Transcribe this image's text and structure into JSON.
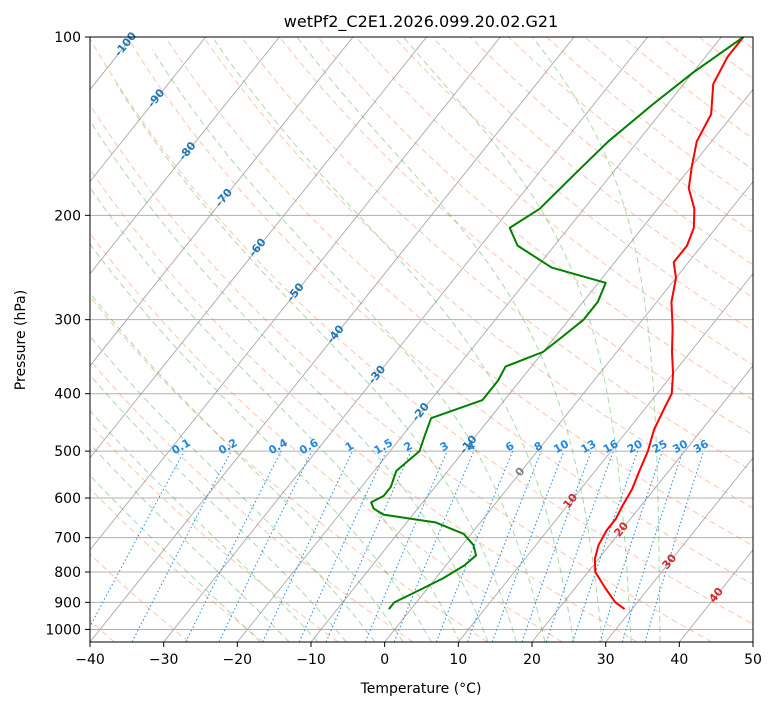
{
  "chart_data": {
    "type": "line",
    "chart_kind": "skew-t log-p diagram",
    "title": "wetPf2_C2E1.2026.099.20.02.G21",
    "xlabel": "Temperature (°C)",
    "ylabel": "Pressure (hPa)",
    "xlim": [
      -40,
      50
    ],
    "ylim": [
      1050,
      100
    ],
    "x_ticks": [
      -40,
      -30,
      -20,
      -10,
      0,
      10,
      20,
      30,
      40,
      50
    ],
    "y_ticks": [
      1000,
      900,
      800,
      700,
      600,
      500,
      400,
      300,
      200,
      100
    ],
    "y_scale": "log",
    "grid": true,
    "colors": {
      "temperature": "#ff0000",
      "dewpoint": "#008000",
      "isotherm": "#a0a0a0",
      "dry_adiabat": "#ff7f50",
      "moist_adiabat": "#2ca02c",
      "mixing_ratio": "#1e88e5",
      "label_blue": "#1f77b4",
      "label_red": "#d62728"
    },
    "series": [
      {
        "name": "Temperature",
        "points": [
          [
            924,
            29
          ],
          [
            900,
            27
          ],
          [
            850,
            24
          ],
          [
            800,
            21
          ],
          [
            760,
            19.5
          ],
          [
            720,
            18.5
          ],
          [
            680,
            18
          ],
          [
            650,
            18
          ],
          [
            620,
            17.5
          ],
          [
            580,
            17
          ],
          [
            540,
            16
          ],
          [
            500,
            15
          ],
          [
            460,
            13.5
          ],
          [
            420,
            12.5
          ],
          [
            400,
            12
          ],
          [
            370,
            10
          ],
          [
            340,
            7.5
          ],
          [
            310,
            5
          ],
          [
            280,
            2
          ],
          [
            255,
            0
          ],
          [
            240,
            -2
          ],
          [
            225,
            -2
          ],
          [
            210,
            -3
          ],
          [
            195,
            -5
          ],
          [
            180,
            -8
          ],
          [
            165,
            -10
          ],
          [
            150,
            -12
          ],
          [
            135,
            -13
          ],
          [
            120,
            -16
          ],
          [
            108,
            -17
          ],
          [
            100,
            -17
          ]
        ]
      },
      {
        "name": "Dewpoint",
        "points": [
          [
            924,
            -3
          ],
          [
            900,
            -3
          ],
          [
            860,
            -1
          ],
          [
            820,
            1
          ],
          [
            780,
            2.5
          ],
          [
            750,
            3
          ],
          [
            720,
            1.5
          ],
          [
            690,
            -1
          ],
          [
            660,
            -6
          ],
          [
            640,
            -14
          ],
          [
            625,
            -16
          ],
          [
            610,
            -17
          ],
          [
            595,
            -16
          ],
          [
            575,
            -16
          ],
          [
            540,
            -17
          ],
          [
            500,
            -16
          ],
          [
            470,
            -17
          ],
          [
            440,
            -18
          ],
          [
            410,
            -13
          ],
          [
            380,
            -13
          ],
          [
            360,
            -13.5
          ],
          [
            340,
            -10
          ],
          [
            320,
            -9
          ],
          [
            300,
            -8
          ],
          [
            280,
            -8
          ],
          [
            260,
            -9
          ],
          [
            245,
            -18
          ],
          [
            225,
            -25
          ],
          [
            210,
            -28
          ],
          [
            195,
            -26
          ],
          [
            170,
            -25
          ],
          [
            150,
            -24
          ],
          [
            130,
            -22
          ],
          [
            115,
            -20
          ],
          [
            100,
            -17
          ]
        ]
      }
    ],
    "isotherm_labels": [
      {
        "text": "-100",
        "p": 103
      },
      {
        "text": "-90",
        "p": 127
      },
      {
        "text": "-80",
        "p": 156
      },
      {
        "text": "-70",
        "p": 187
      },
      {
        "text": "-60",
        "p": 227
      },
      {
        "text": "-50",
        "p": 270
      },
      {
        "text": "-40",
        "p": 318
      },
      {
        "text": "-30",
        "p": 372
      },
      {
        "text": "-20",
        "p": 430
      },
      {
        "text": "-10",
        "p": 488
      },
      {
        "text": "0",
        "p": 543
      },
      {
        "text": "10",
        "p": 608
      },
      {
        "text": "20",
        "p": 679
      },
      {
        "text": "30",
        "p": 769
      },
      {
        "text": "40",
        "p": 876
      }
    ],
    "mixing_ratio_labels": [
      "0.1",
      "0.2",
      "0.4",
      "0.6",
      "1",
      "1.5",
      "2",
      "3",
      "4",
      "6",
      "8",
      "10",
      "13",
      "16",
      "20",
      "25",
      "30",
      "36"
    ]
  }
}
